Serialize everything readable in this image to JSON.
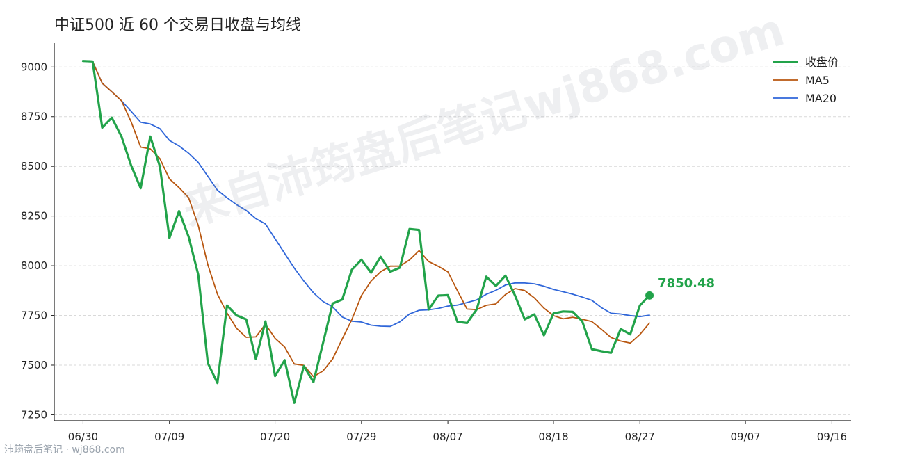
{
  "page": {
    "title": "中证500 近 60 个交易日收盘与均线",
    "watermark": "来自沛筠盘后笔记wj868.com",
    "footer": "沛筠盘后笔记 · wj868.com"
  },
  "chart_data": {
    "type": "line",
    "title": "中证500 近 60 个交易日收盘与均线",
    "xlabel": "",
    "ylabel": "",
    "ylim": [
      7220,
      9120
    ],
    "yticks": [
      7250,
      7500,
      7750,
      8000,
      8250,
      8500,
      8750,
      9000
    ],
    "x": [
      "06/30",
      "07/01",
      "07/02",
      "07/03",
      "07/04",
      "07/07",
      "07/08",
      "07/09",
      "07/10",
      "07/11",
      "07/14",
      "07/15",
      "07/16",
      "07/17",
      "07/18",
      "07/21",
      "07/22",
      "07/23",
      "07/24",
      "07/25",
      "07/28",
      "07/29",
      "07/30",
      "07/31",
      "08/01",
      "08/04",
      "08/05",
      "08/06",
      "08/07",
      "08/08",
      "08/11",
      "08/12",
      "08/13",
      "08/14",
      "08/15",
      "08/18",
      "08/19",
      "08/20",
      "08/21",
      "08/22",
      "08/25",
      "08/26",
      "08/27",
      "08/28",
      "08/29",
      "09/01",
      "09/02",
      "09/03",
      "09/04",
      "09/05",
      "09/08",
      "09/09",
      "09/10",
      "09/11",
      "09/12",
      "09/15",
      "09/16",
      "09/17",
      "09/18",
      "09/19"
    ],
    "xtick_labels": [
      "06/30",
      "07/09",
      "07/20",
      "07/29",
      "08/07",
      "08/18",
      "08/27",
      "09/07",
      "09/16"
    ],
    "xtick_days": [
      0,
      9,
      20,
      29,
      38,
      49,
      58,
      69,
      78
    ],
    "x_days": [
      0,
      1,
      2,
      3,
      4,
      5,
      6,
      7,
      8,
      9,
      10,
      11,
      12,
      13,
      14,
      15,
      16,
      17,
      18,
      19,
      20,
      21,
      22,
      23,
      24,
      25,
      26,
      27,
      28,
      29,
      30,
      31,
      32,
      33,
      34,
      35,
      36,
      37,
      38,
      39,
      40,
      41,
      42,
      43,
      44,
      45,
      46,
      47,
      48,
      49,
      50,
      51,
      52,
      53,
      54,
      55,
      56,
      57,
      58,
      59
    ],
    "series": [
      {
        "name": "收盘价",
        "color": "#22a34a",
        "values": [
          9030,
          9028,
          8695,
          8745,
          8650,
          8505,
          8390,
          8650,
          8500,
          8140,
          8275,
          8145,
          7955,
          7510,
          7410,
          7800,
          7750,
          7730,
          7530,
          7720,
          7445,
          7525,
          7310,
          7495,
          7415,
          7612,
          7810,
          7830,
          7980,
          8030,
          7965,
          8045,
          7970,
          7990,
          8185,
          8180,
          7780,
          7850,
          7852,
          7718,
          7712,
          7780,
          7945,
          7898,
          7950,
          7850,
          7730,
          7755,
          7650,
          7760,
          7770,
          7768,
          7720,
          7580,
          7570,
          7562,
          7682,
          7655,
          7800,
          7850.48
        ]
      },
      {
        "name": "MA5",
        "color": "#b8560f",
        "values": [
          9030,
          9028,
          8918,
          8875,
          8830,
          8725,
          8597,
          8588,
          8539,
          8437,
          8393,
          8342,
          8203,
          8005,
          7857,
          7762,
          7685,
          7640,
          7642,
          7706,
          7635,
          7591,
          7506,
          7499,
          7442,
          7471,
          7531,
          7632,
          7729,
          7850,
          7923,
          7970,
          7998,
          7998,
          8029,
          8076,
          8021,
          7997,
          7969,
          7874,
          7782,
          7779,
          7801,
          7808,
          7855,
          7885,
          7875,
          7838,
          7787,
          7749,
          7733,
          7741,
          7731,
          7719,
          7680,
          7639,
          7621,
          7611,
          7654,
          7712
        ]
      },
      {
        "name": "MA20",
        "color": "#2f66d9",
        "values": [
          9030,
          9028,
          8918,
          8875,
          8830,
          8777,
          8722,
          8713,
          8690,
          8630,
          8603,
          8566,
          8520,
          8450,
          8380,
          8342,
          8307,
          8278,
          8237,
          8210,
          8136,
          8062,
          7988,
          7923,
          7864,
          7820,
          7793,
          7742,
          7721,
          7717,
          7701,
          7696,
          7695,
          7718,
          7757,
          7776,
          7778,
          7785,
          7797,
          7802,
          7815,
          7828,
          7856,
          7876,
          7903,
          7914,
          7913,
          7909,
          7897,
          7881,
          7869,
          7857,
          7842,
          7826,
          7789,
          7761,
          7757,
          7749,
          7744,
          7751
        ]
      }
    ],
    "end_label": "7850.48",
    "legend": {
      "position": "top-right",
      "entries": [
        "收盘价",
        "MA5",
        "MA20"
      ]
    },
    "grid": {
      "y": true,
      "x": false
    }
  }
}
